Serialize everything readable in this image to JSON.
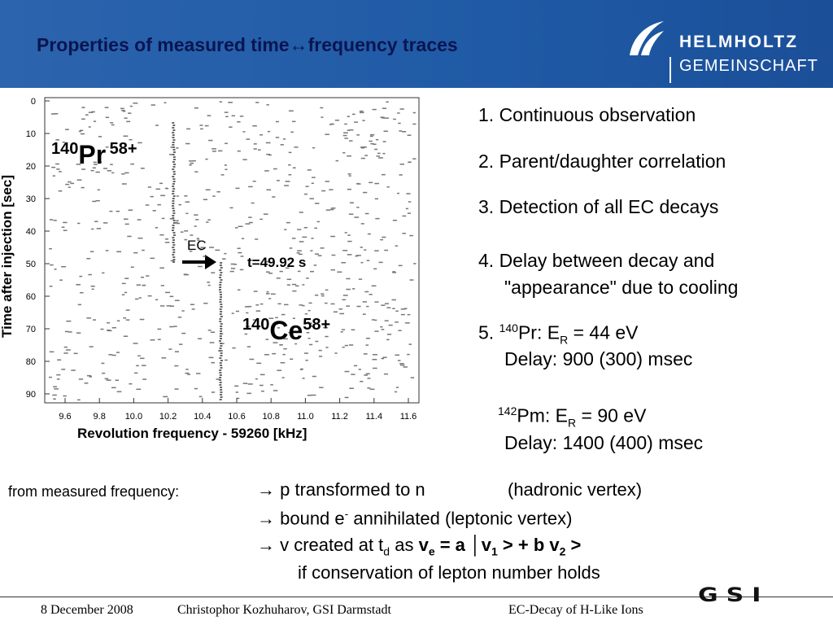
{
  "header": {
    "title": "Properties of measured time↔frequency traces",
    "logo_top": "HELMHOLTZ",
    "logo_bottom": "GEMEINSCHAFT"
  },
  "figure": {
    "y_label": "Time after injection [sec]",
    "x_label": "Revolution frequency - 59260 [kHz]",
    "yticks": [
      "0",
      "10",
      "20",
      "30",
      "40",
      "50",
      "60",
      "70",
      "80",
      "90"
    ],
    "xticks": [
      "9.6",
      "9.8",
      "10.0",
      "10.2",
      "10.4",
      "10.6",
      "10.8",
      "11.0",
      "11.2",
      "11.4",
      "11.6"
    ],
    "parent": {
      "mass": "140",
      "element": "Pr",
      "charge": "58+"
    },
    "daughter": {
      "mass": "140",
      "element": "Ce",
      "charge": "58+"
    },
    "ec_label": "EC",
    "time_label": "t=49.92 s"
  },
  "items": [
    "1. Continuous observation",
    "2. Parent/daughter correlation",
    "3. Detection of all EC decays",
    [
      "4. Delay between decay and",
      "\"appearance\" due to cooling"
    ],
    {
      "prefix": "5. ",
      "mass": "140",
      "text": "Pr: E",
      "sub": "R",
      "rest": " = 44 eV",
      "delay": "Delay: 900 (300) msec"
    },
    {
      "mass": "142",
      "text": "Pm: E",
      "sub": "R",
      "rest": " = 90 eV",
      "delay": "Delay: 1400 (400) msec"
    }
  ],
  "conclusion": {
    "intro": "from measured frequency:",
    "line1": [
      "→ p transformed to n",
      "(hadronic vertex)"
    ],
    "line2": [
      "→  bound e",
      "-",
      " annihilated  (leptonic  vertex)"
    ],
    "line3": [
      "→  v created at t",
      "d",
      " as ",
      "v",
      "e",
      " = a │v",
      "1",
      " > + b v",
      "2",
      " >"
    ],
    "line4": "if conservation of lepton number holds"
  },
  "footer": {
    "date": "8 December 2008",
    "author": "Christophor Kozhuharov, GSI Darmstadt",
    "topic": "EC-Decay of H-Like Ions",
    "logo": "GSI"
  }
}
